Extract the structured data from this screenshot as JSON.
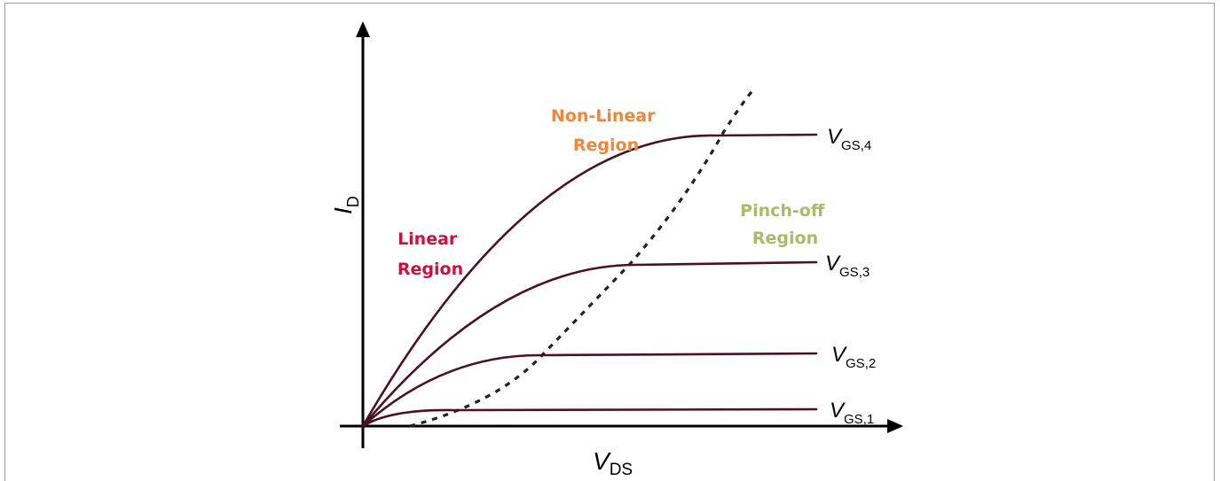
{
  "axes": {
    "x_label": {
      "main": "V",
      "sub": "DS"
    },
    "y_label": {
      "main": "I",
      "sub": "D"
    }
  },
  "regions": {
    "linear": {
      "line1": "Linear",
      "line2": "Region",
      "color": "#d0103a"
    },
    "non_linear": {
      "line1": "Non-Linear",
      "line2": "Region",
      "color": "#f0863a"
    },
    "pinch_off": {
      "line1": "Pinch-off",
      "line2": "Region",
      "color": "#a9ba6a"
    }
  },
  "curves": [
    {
      "main": "V",
      "sub": "GS,1"
    },
    {
      "main": "V",
      "sub": "GS,2"
    },
    {
      "main": "V",
      "sub": "GS,3"
    },
    {
      "main": "V",
      "sub": "GS,4"
    }
  ],
  "colors": {
    "curve": "#4a1220",
    "pinch_off_boundary": "#222222",
    "axis": "#000000"
  }
}
